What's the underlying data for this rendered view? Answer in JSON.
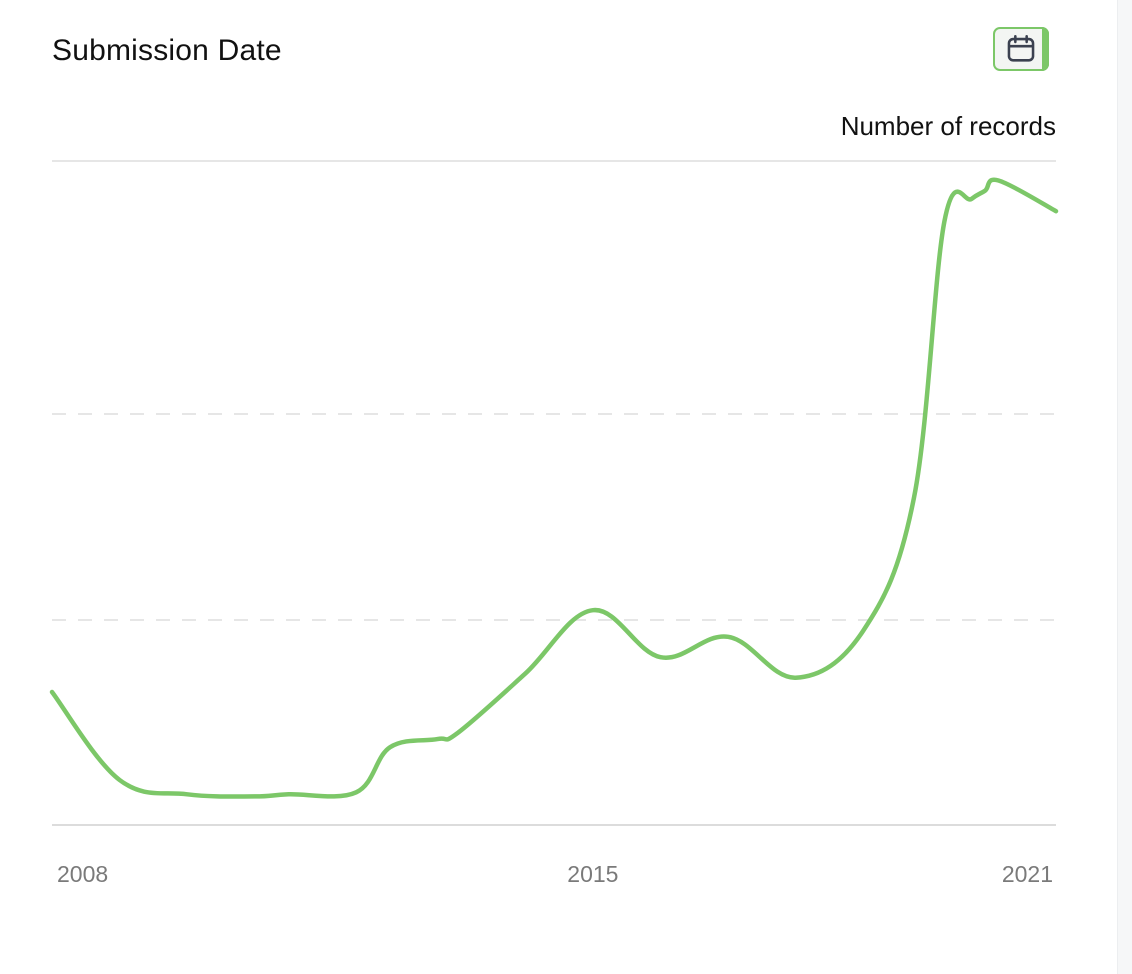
{
  "header": {
    "title": "Submission Date",
    "calendar_icon": "calendar-icon"
  },
  "colors": {
    "line": "#7cc768",
    "grid": "#e6e6e6",
    "axis_text": "#7a7a7a"
  },
  "chart_data": {
    "type": "line",
    "title": "Submission Date",
    "ylabel": "Number of records",
    "xlabel": "",
    "xlim": [
      2007.0,
      2021.85
    ],
    "ylim": [
      0,
      3.25
    ],
    "grid": "horizontal-dashed",
    "x_ticks": [
      {
        "value": 2008.0,
        "label": "2008"
      },
      {
        "value": 2015.0,
        "label": "2015"
      },
      {
        "value": 2021.0,
        "label": "2021"
      }
    ],
    "series": [
      {
        "name": "Number of records",
        "x": [
          2007.0,
          2008.0,
          2009.0,
          2010.0,
          2010.5,
          2011.5,
          2012.0,
          2012.7,
          2013.0,
          2014.0,
          2015.0,
          2016.0,
          2017.0,
          2018.0,
          2019.0,
          2019.75,
          2020.2,
          2020.6,
          2020.8,
          2021.0,
          2021.85
        ],
        "y": [
          0.65,
          0.22,
          0.15,
          0.14,
          0.15,
          0.16,
          0.38,
          0.42,
          0.45,
          0.74,
          1.05,
          0.82,
          0.92,
          0.72,
          0.95,
          1.6,
          2.95,
          3.06,
          3.1,
          3.15,
          3.0
        ]
      }
    ]
  }
}
